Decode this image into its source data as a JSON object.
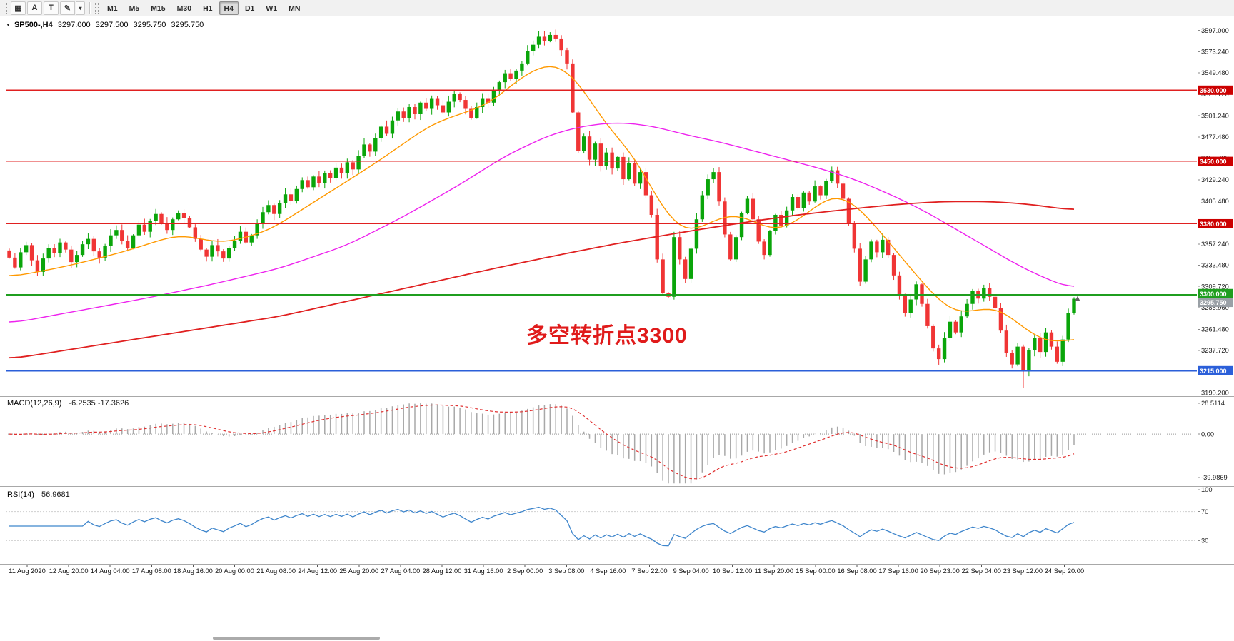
{
  "toolbar": {
    "tool_buttons": [
      {
        "name": "chart-window-icon",
        "glyph": "▦"
      },
      {
        "name": "arrow-tool",
        "label": "A"
      },
      {
        "name": "text-tool",
        "label": "T"
      },
      {
        "name": "drawing-tool",
        "glyph": "✎"
      },
      {
        "name": "drawing-tool-caret",
        "glyph": "▾"
      }
    ],
    "timeframes": [
      "M1",
      "M5",
      "M15",
      "M30",
      "H1",
      "H4",
      "D1",
      "W1",
      "MN"
    ],
    "active_timeframe": "H4"
  },
  "chart_data": {
    "type": "candlestick",
    "symbol": "SP500-",
    "timeframe": "H4",
    "quote": {
      "symbol_period": "SP500-,H4",
      "open": "3297.000",
      "high": "3297.500",
      "low": "3295.750",
      "close": "3295.750"
    },
    "annotation": {
      "text": "多空转折点3300",
      "color": "#e01b1b"
    },
    "colors": {
      "candle_up": "#0aa50a",
      "candle_down": "#f03535",
      "axis_text": "#1c1c1c"
    },
    "price_axis": {
      "min": 3188,
      "max": 3608,
      "ticks": [
        "3597.000",
        "3573.240",
        "3549.480",
        "3525.720",
        "3501.240",
        "3477.480",
        "3453.720",
        "3429.240",
        "3405.480",
        "3381.720",
        "3357.240",
        "3333.480",
        "3309.720",
        "3285.960",
        "3261.480",
        "3237.720",
        "3213.960",
        "3190.200"
      ]
    },
    "hlines": [
      {
        "price": 3530,
        "label": "3530.000",
        "color": "#e02020",
        "tag_bg": "#cc0000",
        "width": 1.2
      },
      {
        "price": 3450,
        "label": "3450.000",
        "color": "#e02020",
        "tag_bg": "#cc0000",
        "width": 1.2
      },
      {
        "price": 3380,
        "label": "3380.000",
        "color": "#e02020",
        "tag_bg": "#cc0000",
        "width": 1.2
      },
      {
        "price": 3300,
        "label": "3300.000",
        "color": "#1f9e1f",
        "tag_bg": "#1f9e1f",
        "width": 2.4
      },
      {
        "price": 3215,
        "label": "3215.000",
        "color": "#2b5fd9",
        "tag_bg": "#2b5fd9",
        "width": 2.4
      }
    ],
    "current_price": {
      "value": 3295.75,
      "label": "3295.750",
      "tag_bg": "#9aa0a6"
    },
    "first_open": 3350,
    "closes": [
      3342,
      3331,
      3348,
      3356,
      3339,
      3326,
      3341,
      3353,
      3347,
      3359,
      3351,
      3337,
      3345,
      3357,
      3363,
      3349,
      3342,
      3355,
      3367,
      3373,
      3361,
      3353,
      3367,
      3379,
      3371,
      3383,
      3391,
      3381,
      3373,
      3385,
      3392,
      3386,
      3376,
      3363,
      3351,
      3343,
      3356,
      3349,
      3341,
      3353,
      3361,
      3371,
      3359,
      3367,
      3381,
      3393,
      3401,
      3391,
      3403,
      3413,
      3406,
      3419,
      3429,
      3421,
      3433,
      3426,
      3437,
      3431,
      3443,
      3437,
      3449,
      3441,
      3456,
      3469,
      3461,
      3476,
      3489,
      3481,
      3496,
      3506,
      3499,
      3511,
      3503,
      3516,
      3509,
      3521,
      3513,
      3505,
      3517,
      3526,
      3519,
      3509,
      3499,
      3511,
      3521,
      3516,
      3529,
      3539,
      3549,
      3543,
      3552,
      3560,
      3574,
      3581,
      3590,
      3585,
      3592,
      3588,
      3575,
      3560,
      3505,
      3462,
      3478,
      3452,
      3470,
      3445,
      3460,
      3442,
      3455,
      3430,
      3448,
      3425,
      3438,
      3412,
      3390,
      3340,
      3302,
      3298,
      3365,
      3340,
      3318,
      3352,
      3385,
      3412,
      3430,
      3438,
      3405,
      3368,
      3340,
      3365,
      3392,
      3408,
      3385,
      3360,
      3345,
      3372,
      3390,
      3378,
      3395,
      3410,
      3398,
      3415,
      3405,
      3422,
      3412,
      3428,
      3440,
      3425,
      3408,
      3380,
      3352,
      3315,
      3340,
      3360,
      3348,
      3362,
      3345,
      3322,
      3300,
      3280,
      3295,
      3312,
      3290,
      3265,
      3240,
      3228,
      3252,
      3270,
      3258,
      3276,
      3290,
      3305,
      3296,
      3308,
      3298,
      3285,
      3260,
      3235,
      3222,
      3242,
      3215,
      3238,
      3252,
      3236,
      3258,
      3242,
      3225,
      3250,
      3280,
      3295.75
    ],
    "ma_lines": [
      {
        "name": "ma-fast",
        "color": "#ff9900",
        "width": 1.4,
        "anchors": [
          [
            0,
            3320
          ],
          [
            10,
            3332
          ],
          [
            20,
            3348
          ],
          [
            30,
            3368
          ],
          [
            38,
            3358
          ],
          [
            46,
            3372
          ],
          [
            55,
            3408
          ],
          [
            65,
            3448
          ],
          [
            75,
            3492
          ],
          [
            85,
            3514
          ],
          [
            92,
            3550
          ],
          [
            97,
            3562
          ],
          [
            101,
            3540
          ],
          [
            106,
            3490
          ],
          [
            111,
            3456
          ],
          [
            116,
            3396
          ],
          [
            120,
            3368
          ],
          [
            124,
            3380
          ],
          [
            128,
            3392
          ],
          [
            132,
            3384
          ],
          [
            136,
            3370
          ],
          [
            141,
            3388
          ],
          [
            146,
            3414
          ],
          [
            150,
            3404
          ],
          [
            155,
            3368
          ],
          [
            160,
            3330
          ],
          [
            164,
            3300
          ],
          [
            168,
            3278
          ],
          [
            172,
            3284
          ],
          [
            176,
            3286
          ],
          [
            180,
            3262
          ],
          [
            184,
            3248
          ],
          [
            187,
            3244
          ],
          [
            189,
            3258
          ]
        ]
      },
      {
        "name": "ma-mid",
        "color": "#ee22ee",
        "width": 1.4,
        "anchors": [
          [
            0,
            3268
          ],
          [
            12,
            3282
          ],
          [
            24,
            3296
          ],
          [
            36,
            3312
          ],
          [
            48,
            3330
          ],
          [
            60,
            3356
          ],
          [
            70,
            3388
          ],
          [
            80,
            3424
          ],
          [
            88,
            3456
          ],
          [
            96,
            3480
          ],
          [
            102,
            3490
          ],
          [
            108,
            3494
          ],
          [
            114,
            3490
          ],
          [
            120,
            3480
          ],
          [
            126,
            3472
          ],
          [
            132,
            3462
          ],
          [
            138,
            3452
          ],
          [
            144,
            3442
          ],
          [
            150,
            3430
          ],
          [
            156,
            3414
          ],
          [
            162,
            3396
          ],
          [
            168,
            3374
          ],
          [
            174,
            3352
          ],
          [
            180,
            3330
          ],
          [
            185,
            3316
          ],
          [
            189,
            3306
          ]
        ]
      },
      {
        "name": "ma-slow",
        "color": "#e02020",
        "width": 1.8,
        "anchors": [
          [
            0,
            3228
          ],
          [
            12,
            3240
          ],
          [
            24,
            3252
          ],
          [
            36,
            3264
          ],
          [
            48,
            3276
          ],
          [
            60,
            3293
          ],
          [
            72,
            3310
          ],
          [
            84,
            3327
          ],
          [
            96,
            3343
          ],
          [
            108,
            3358
          ],
          [
            120,
            3371
          ],
          [
            130,
            3381
          ],
          [
            140,
            3390
          ],
          [
            150,
            3397
          ],
          [
            158,
            3402
          ],
          [
            166,
            3405
          ],
          [
            174,
            3405
          ],
          [
            181,
            3402
          ],
          [
            189,
            3395
          ]
        ]
      }
    ],
    "time_labels": [
      "11 Aug 2020",
      "12 Aug 20:00",
      "14 Aug 04:00",
      "17 Aug 08:00",
      "18 Aug 16:00",
      "20 Aug 00:00",
      "21 Aug 08:00",
      "24 Aug 12:00",
      "25 Aug 20:00",
      "27 Aug 04:00",
      "28 Aug 12:00",
      "31 Aug 16:00",
      "2 Sep 00:00",
      "3 Sep 08:00",
      "4 Sep 16:00",
      "7 Sep 22:00",
      "9 Sep 04:00",
      "10 Sep 12:00",
      "11 Sep 20:00",
      "15 Sep 00:00",
      "16 Sep 08:00",
      "17 Sep 16:00",
      "20 Sep 23:00",
      "22 Sep 04:00",
      "23 Sep 12:00",
      "24 Sep 20:00"
    ],
    "macd": {
      "label": "MACD(12,26,9)",
      "current": "-6.2535 -17.3626",
      "params": [
        12,
        26,
        9
      ],
      "range": [
        -46,
        33
      ],
      "ticks": [
        {
          "v": 28.5114,
          "label": "28.5114"
        },
        {
          "v": 0,
          "label": "0.00"
        },
        {
          "v": -39.9869,
          "label": "-39.9869"
        }
      ],
      "hist_color": "#a8a8a8",
      "signal_color": "#e03030"
    },
    "rsi": {
      "label": "RSI(14)",
      "current": "56.9681",
      "period": 14,
      "range": [
        0,
        100
      ],
      "ticks": [
        {
          "v": 100,
          "label": "100"
        },
        {
          "v": 70,
          "label": "70"
        },
        {
          "v": 30,
          "label": "30"
        }
      ],
      "levels": [
        70,
        30
      ],
      "color": "#3f86cc"
    }
  }
}
